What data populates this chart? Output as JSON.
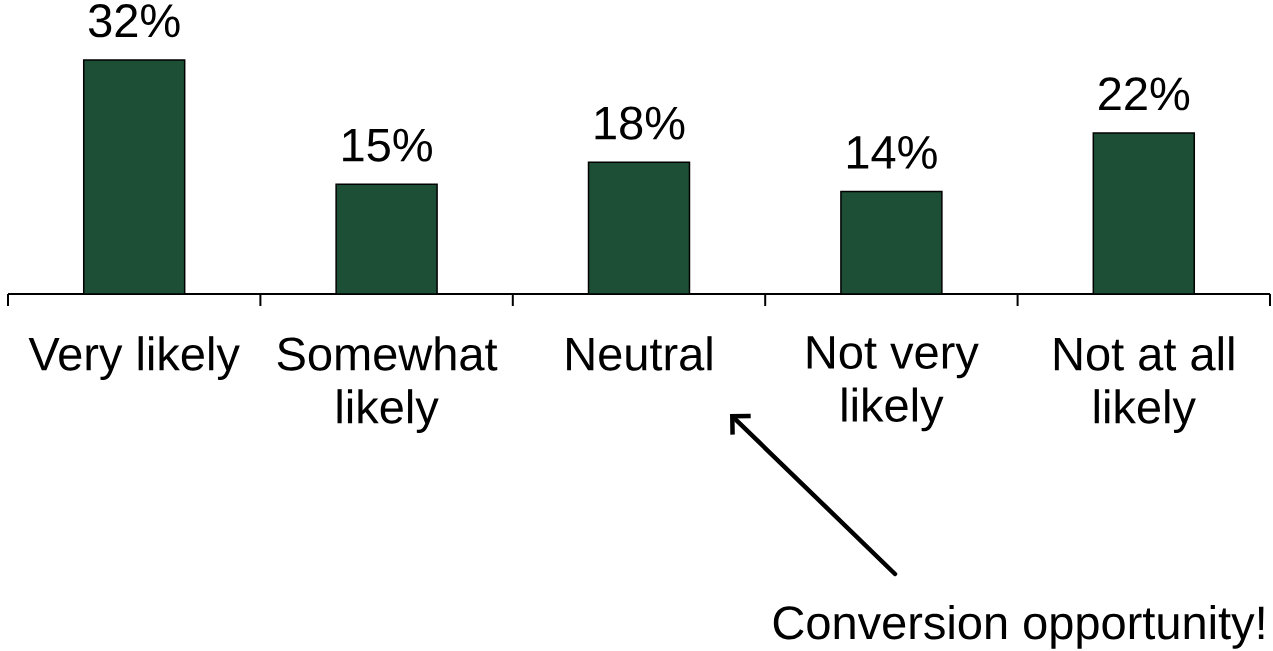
{
  "chart_data": {
    "type": "bar",
    "categories": [
      "Very likely",
      "Somewhat likely",
      "Neutral",
      "Not very likely",
      "Not at all likely"
    ],
    "values": [
      32,
      15,
      18,
      14,
      22
    ],
    "value_labels": [
      "32%",
      "15%",
      "18%",
      "14%",
      "22%"
    ],
    "color": "#1c4f35",
    "annotations": [
      "Conversion opportunity!"
    ]
  }
}
